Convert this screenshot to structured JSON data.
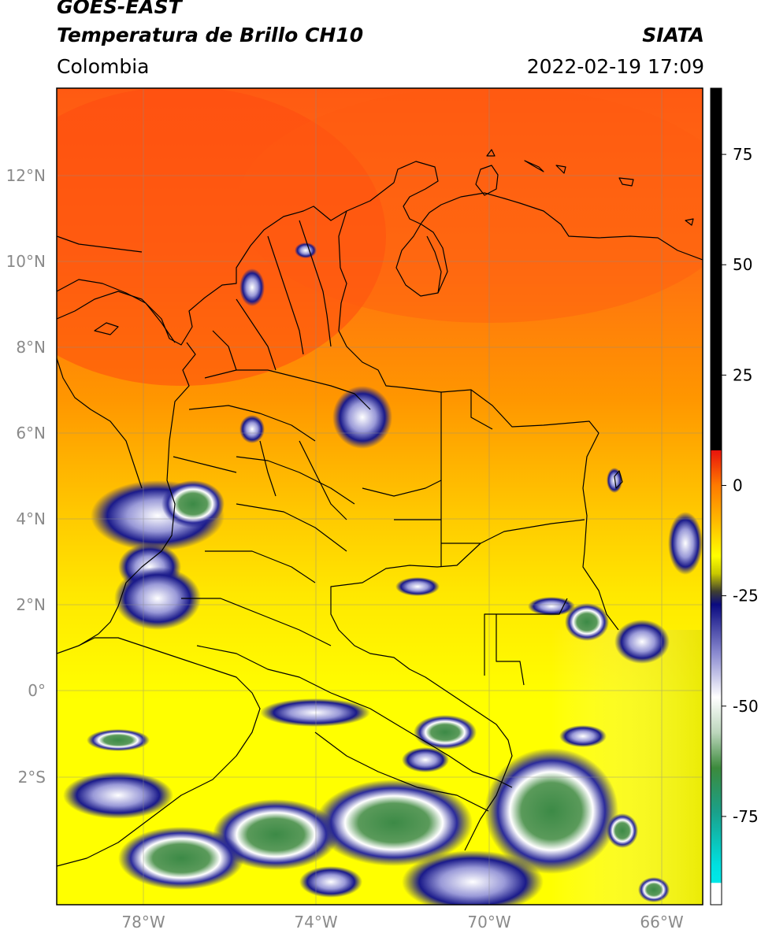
{
  "header": {
    "satellite": "GOES-EAST",
    "product": "Temperatura de Brillo CH10",
    "agency": "SIATA",
    "region": "Colombia",
    "datetime": "2022-02-19 17:09"
  },
  "axes": {
    "lon_ticks": [
      "78°W",
      "74°W",
      "70°W",
      "66°W"
    ],
    "lat_ticks": [
      "12°N",
      "10°N",
      "8°N",
      "6°N",
      "4°N",
      "2°N",
      "0°",
      "2°S"
    ],
    "lon_range": [
      -80,
      -65
    ],
    "lat_range": [
      -4.6,
      14.4
    ]
  },
  "colorbar": {
    "labels": [
      "75",
      "50",
      "25",
      "0",
      "-25",
      "-50",
      "-75"
    ],
    "values": [
      75,
      50,
      25,
      0,
      -25,
      -50,
      -75
    ],
    "range": [
      -95,
      90
    ],
    "stops": [
      {
        "v": 90,
        "c": "#000000"
      },
      {
        "v": 8,
        "c": "#000000"
      },
      {
        "v": 7.9,
        "c": "#e8140c"
      },
      {
        "v": 0,
        "c": "#ff7a00"
      },
      {
        "v": -8,
        "c": "#ffb800"
      },
      {
        "v": -16,
        "c": "#ffff00"
      },
      {
        "v": -20,
        "c": "#c8c800"
      },
      {
        "v": -24,
        "c": "#404030"
      },
      {
        "v": -27,
        "c": "#0a0a80"
      },
      {
        "v": -38,
        "c": "#8a8ad0"
      },
      {
        "v": -48,
        "c": "#ffffff"
      },
      {
        "v": -56,
        "c": "#bcd6bc"
      },
      {
        "v": -64,
        "c": "#3c8a3c"
      },
      {
        "v": -74,
        "c": "#1aa08a"
      },
      {
        "v": -86,
        "c": "#00e0e0"
      },
      {
        "v": -90,
        "c": "#00e8e8"
      },
      {
        "v": -90.1,
        "c": "#ffffff"
      },
      {
        "v": -95,
        "c": "#ffffff"
      }
    ]
  },
  "colors": {
    "warm_north": "#ff5a12",
    "orange": "#ff8a0a",
    "yellow": "#ffee00",
    "cold_cloud_blue": "#1a1a8a",
    "cold_cloud_green": "#3c8a46"
  }
}
